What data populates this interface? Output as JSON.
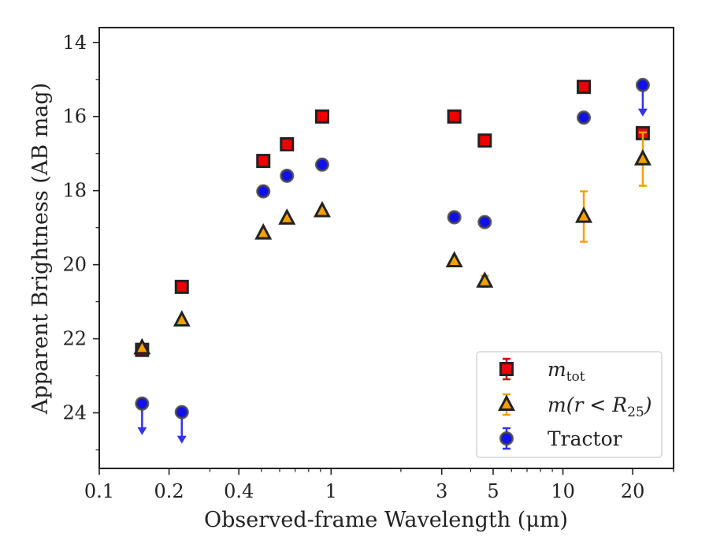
{
  "chart_data": {
    "type": "scatter",
    "xlabel": "Observed-frame Wavelength (μm)",
    "ylabel": "Apparent Brightness (AB mag)",
    "xscale": "log",
    "xlim": [
      0.1,
      30
    ],
    "ylim": [
      25.5,
      13.6
    ],
    "y_inverted": true,
    "xticks": [
      {
        "value": 0.1,
        "label": "0.1"
      },
      {
        "value": 0.2,
        "label": "0.2"
      },
      {
        "value": 0.4,
        "label": "0.4"
      },
      {
        "value": 1,
        "label": "1"
      },
      {
        "value": 3,
        "label": "3"
      },
      {
        "value": 5,
        "label": "5"
      },
      {
        "value": 10,
        "label": "10"
      },
      {
        "value": 20,
        "label": "20"
      }
    ],
    "yticks": [
      {
        "value": 14,
        "label": "14"
      },
      {
        "value": 16,
        "label": "16"
      },
      {
        "value": 18,
        "label": "18"
      },
      {
        "value": 20,
        "label": "20"
      },
      {
        "value": 22,
        "label": "22"
      },
      {
        "value": 24,
        "label": "24"
      }
    ],
    "grid": false,
    "legend_position": "lower-right",
    "series": [
      {
        "key": "m_tot",
        "marker": "square",
        "color": "#ee0000",
        "ecolor": "#cc0000",
        "points": [
          {
            "x": 0.153,
            "y": 22.3,
            "yerr": 0.05
          },
          {
            "x": 0.227,
            "y": 20.6,
            "yerr": 0.05
          },
          {
            "x": 0.51,
            "y": 17.2,
            "yerr": 0.05
          },
          {
            "x": 0.645,
            "y": 16.75,
            "yerr": 0.05
          },
          {
            "x": 0.915,
            "y": 16.0,
            "yerr": 0.05
          },
          {
            "x": 3.4,
            "y": 16.0,
            "yerr": 0.05
          },
          {
            "x": 4.6,
            "y": 16.65,
            "yerr": 0.05
          },
          {
            "x": 12.3,
            "y": 15.2,
            "yerr": 0.05
          },
          {
            "x": 22.1,
            "y": 16.45,
            "yerr": 0.05
          }
        ]
      },
      {
        "key": "m_r25",
        "marker": "triangle",
        "color": "#f5a000",
        "ecolor": "#f5a000",
        "points": [
          {
            "x": 0.153,
            "y": 22.25,
            "yerr": 0.05
          },
          {
            "x": 0.227,
            "y": 21.5,
            "yerr": 0.05
          },
          {
            "x": 0.51,
            "y": 19.15,
            "yerr": 0.05
          },
          {
            "x": 0.645,
            "y": 18.75,
            "yerr": 0.05
          },
          {
            "x": 0.915,
            "y": 18.55,
            "yerr": 0.05
          },
          {
            "x": 3.4,
            "y": 19.9,
            "yerr": 0.05
          },
          {
            "x": 4.6,
            "y": 20.45,
            "yerr": 0.15
          },
          {
            "x": 12.3,
            "y": 18.7,
            "yerr": 0.68
          },
          {
            "x": 22.1,
            "y": 17.15,
            "yerr": 0.72
          }
        ]
      },
      {
        "key": "tractor",
        "marker": "circle",
        "color": "#1010ee",
        "ecolor": "#3333ee",
        "points": [
          {
            "x": 0.153,
            "y": 23.75,
            "upper_limit": true
          },
          {
            "x": 0.227,
            "y": 23.98,
            "upper_limit": true
          },
          {
            "x": 0.51,
            "y": 18.02
          },
          {
            "x": 0.645,
            "y": 17.6
          },
          {
            "x": 0.915,
            "y": 17.3
          },
          {
            "x": 3.4,
            "y": 18.72
          },
          {
            "x": 4.6,
            "y": 18.85
          },
          {
            "x": 12.3,
            "y": 16.03
          },
          {
            "x": 22.1,
            "y": 15.15,
            "upper_limit": true
          }
        ]
      }
    ],
    "legend": [
      {
        "series": "m_tot",
        "base": "m",
        "sub": "tot",
        "tail": ""
      },
      {
        "series": "m_r25",
        "base": "m(r < R",
        "sub": "25",
        "tail": ")"
      },
      {
        "series": "tractor",
        "base": "Tractor",
        "sub": "",
        "tail": ""
      }
    ]
  }
}
